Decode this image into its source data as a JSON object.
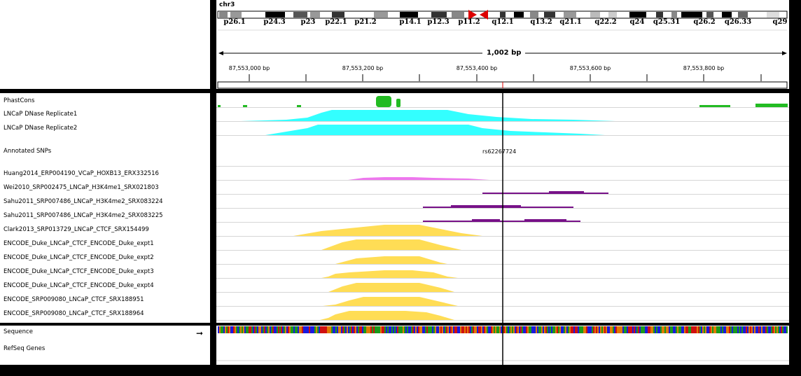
{
  "locus": {
    "chromosome": "chr3",
    "bands": [
      "p26.1",
      "p24.3",
      "p23",
      "p22.1",
      "p21.2",
      "p14.1",
      "p12.3",
      "p11.2",
      "q12.1",
      "q13.2",
      "q21.1",
      "q22.2",
      "q24",
      "q25.31",
      "q26.2",
      "q26.33",
      "q29"
    ],
    "span_label": "1,002 bp",
    "positions": [
      "87,553,000 bp",
      "87,553,200 bp",
      "87,553,400 bp",
      "87,553,600 bp",
      "87,553,800 bp"
    ]
  },
  "tracks": [
    {
      "name": "PhastCons",
      "color": "#22bb22"
    },
    {
      "name": "LNCaP DNase Replicate1",
      "color": "#33ffff"
    },
    {
      "name": "LNCaP DNase Replicate2",
      "color": "#33ffff"
    },
    {
      "name": "Annotated SNPs",
      "color": "#000000"
    },
    {
      "name": "Huang2014_ERP004190_VCaP_HOXB13_ERX332516",
      "color": "#ee77ee"
    },
    {
      "name": "Wei2010_SRP002475_LNCaP_H3K4me1_SRX021803",
      "color": "#771188"
    },
    {
      "name": "Sahu2011_SRP007486_LNCaP_H3K4me2_SRX083224",
      "color": "#771188"
    },
    {
      "name": "Sahu2011_SRP007486_LNCaP_H3K4me2_SRX083225",
      "color": "#771188"
    },
    {
      "name": "Clark2013_SRP013729_LNCaP_CTCF_SRX154499",
      "color": "#ffdd55"
    },
    {
      "name": "ENCODE_Duke_LNCaP_CTCF_ENCODE_Duke_expt1",
      "color": "#ffdd55"
    },
    {
      "name": "ENCODE_Duke_LNCaP_CTCF_ENCODE_Duke_expt2",
      "color": "#ffdd55"
    },
    {
      "name": "ENCODE_Duke_LNCaP_CTCF_ENCODE_Duke_expt3",
      "color": "#ffdd55"
    },
    {
      "name": "ENCODE_Duke_LNCaP_CTCF_ENCODE_Duke_expt4",
      "color": "#ffdd55"
    },
    {
      "name": "ENCODE_SRP009080_LNCaP_CTCF_SRX188951",
      "color": "#ffdd55"
    },
    {
      "name": "ENCODE_SRP009080_LNCaP_CTCF_SRX188964",
      "color": "#ffdd55"
    }
  ],
  "snp": {
    "label": "rs62267724"
  },
  "bottom_tracks": [
    {
      "name": "Sequence"
    },
    {
      "name": "RefSeq Genes"
    }
  ],
  "icons": {
    "sequence_strand": "right-arrow-icon"
  }
}
